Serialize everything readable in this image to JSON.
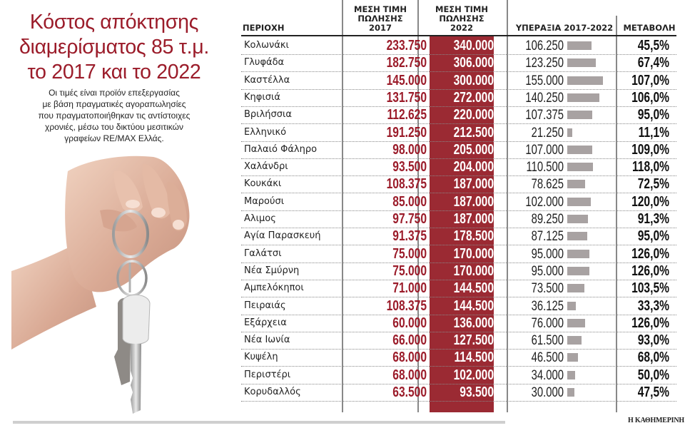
{
  "header": {
    "title_lines": [
      "Κόστος απόκτησης",
      "διαμερίσματος 85 τ.μ.",
      "το 2017 και το 2022"
    ],
    "subtitle_lines": [
      "Οι τιμές είναι προϊόν επεξεργασίας",
      "με βάση πραγματικές αγοραπωλησίες",
      "που πραγματοποιήθηκαν τις αντίστοιχες",
      "χρονιές, μέσω του δικτύου μεσιτικών",
      "γραφείων RE/MAX Ελλάς."
    ]
  },
  "table": {
    "columns": {
      "area": "ΠΕΡΙΟΧΗ",
      "price_2017": [
        "ΜΕΣΗ ΤΙΜΗ",
        "ΠΩΛΗΣΗΣ",
        "2017"
      ],
      "price_2022": [
        "ΜΕΣΗ ΤΙΜΗ",
        "ΠΩΛΗΣΗΣ",
        "2022"
      ],
      "gain": "ΥΠΕΡΑΞΙΑ 2017-2022",
      "change": "ΜΕΤΑΒΟΛΗ"
    },
    "rows": [
      {
        "area": "Κολωνάκι",
        "p2017": "233.750",
        "p2022": "340.000",
        "gain": "106.250",
        "change": "45,5%"
      },
      {
        "area": "Γλυφάδα",
        "p2017": "182.750",
        "p2022": "306.000",
        "gain": "123.250",
        "change": "67,4%"
      },
      {
        "area": "Καστέλλα",
        "p2017": "145.000",
        "p2022": "300.000",
        "gain": "155.000",
        "change": "107,0%"
      },
      {
        "area": "Κηφισιά",
        "p2017": "131.750",
        "p2022": "272.000",
        "gain": "140.250",
        "change": "106,0%"
      },
      {
        "area": "Βριλήσσια",
        "p2017": "112.625",
        "p2022": "220.000",
        "gain": "107.375",
        "change": "95,0%"
      },
      {
        "area": "Ελληνικό",
        "p2017": "191.250",
        "p2022": "212.500",
        "gain": "21.250",
        "change": "11,1%"
      },
      {
        "area": "Παλαιό Φάληρο",
        "p2017": "98.000",
        "p2022": "205.000",
        "gain": "107.000",
        "change": "109,0%"
      },
      {
        "area": "Χαλάνδρι",
        "p2017": "93.500",
        "p2022": "204.000",
        "gain": "110.500",
        "change": "118,0%"
      },
      {
        "area": "Κουκάκι",
        "p2017": "108.375",
        "p2022": "187.000",
        "gain": "78.625",
        "change": "72,5%"
      },
      {
        "area": "Μαρούσι",
        "p2017": "85.000",
        "p2022": "187.000",
        "gain": "102.000",
        "change": "120,0%"
      },
      {
        "area": "Αλιμος",
        "p2017": "97.750",
        "p2022": "187.000",
        "gain": "89.250",
        "change": "91,3%"
      },
      {
        "area": "Αγία Παρασκευή",
        "p2017": "91.375",
        "p2022": "178.500",
        "gain": "87.125",
        "change": "95,0%"
      },
      {
        "area": "Γαλάτσι",
        "p2017": "75.000",
        "p2022": "170.000",
        "gain": "95.000",
        "change": "126,0%"
      },
      {
        "area": "Νέα Σμύρνη",
        "p2017": "75.000",
        "p2022": "170.000",
        "gain": "95.000",
        "change": "126,0%"
      },
      {
        "area": "Αμπελόκηποι",
        "p2017": "71.000",
        "p2022": "144.500",
        "gain": "73.500",
        "change": "103,5%"
      },
      {
        "area": "Πειραιάς",
        "p2017": "108.375",
        "p2022": "144.500",
        "gain": "36.125",
        "change": "33,3%"
      },
      {
        "area": "Εξάρχεια",
        "p2017": "60.000",
        "p2022": "136.000",
        "gain": "76.000",
        "change": "126,0%"
      },
      {
        "area": "Νέα Ιωνία",
        "p2017": "66.000",
        "p2022": "127.500",
        "gain": "61.500",
        "change": "93,0%"
      },
      {
        "area": "Κυψέλη",
        "p2017": "68.000",
        "p2022": "114.500",
        "gain": "46.500",
        "change": "68,0%"
      },
      {
        "area": "Περιστέρι",
        "p2017": "68.000",
        "p2022": "102.000",
        "gain": "34.000",
        "change": "50,0%"
      },
      {
        "area": "Κορυδαλλός",
        "p2017": "63.500",
        "p2022": "93.500",
        "gain": "30.000",
        "change": "47,5%"
      }
    ]
  },
  "colors": {
    "accent_red": "#9b1c2a",
    "column_2022_bg": "#9b2a33",
    "bar_gray": "#a8a2a2"
  },
  "footer": {
    "brand": "Η ΚΑΘΗΜΕΡΙΝΗ"
  },
  "chart_data": {
    "type": "table",
    "title": "Κόστος απόκτησης διαμερίσματος 85 τ.μ. το 2017 και το 2022",
    "subtitle": "Οι τιμές είναι προϊόν επεξεργασίας με βάση πραγματικές αγοραπωλησίες που πραγματοποιήθηκαν τις αντίστοιχες χρονιές, μέσω του δικτύου μεσιτικών γραφείων RE/MAX Ελλάς.",
    "columns": [
      "ΠΕΡΙΟΧΗ",
      "ΜΕΣΗ ΤΙΜΗ ΠΩΛΗΣΗΣ 2017",
      "ΜΕΣΗ ΤΙΜΗ ΠΩΛΗΣΗΣ 2022",
      "ΥΠΕΡΑΞΙΑ 2017-2022",
      "ΜΕΤΑΒΟΛΗ"
    ],
    "categories": [
      "Κολωνάκι",
      "Γλυφάδα",
      "Καστέλλα",
      "Κηφισιά",
      "Βριλήσσια",
      "Ελληνικό",
      "Παλαιό Φάληρο",
      "Χαλάνδρι",
      "Κουκάκι",
      "Μαρούσι",
      "Αλιμος",
      "Αγία Παρασκευή",
      "Γαλάτσι",
      "Νέα Σμύρνη",
      "Αμπελόκηποι",
      "Πειραιάς",
      "Εξάρχεια",
      "Νέα Ιωνία",
      "Κυψέλη",
      "Περιστέρι",
      "Κορυδαλλός"
    ],
    "series": [
      {
        "name": "ΜΕΣΗ ΤΙΜΗ ΠΩΛΗΣΗΣ 2017",
        "values": [
          233750,
          182750,
          145000,
          131750,
          112625,
          191250,
          98000,
          93500,
          108375,
          85000,
          97750,
          91375,
          75000,
          75000,
          71000,
          108375,
          60000,
          66000,
          68000,
          68000,
          63500
        ]
      },
      {
        "name": "ΜΕΣΗ ΤΙΜΗ ΠΩΛΗΣΗΣ 2022",
        "values": [
          340000,
          306000,
          300000,
          272000,
          220000,
          212500,
          205000,
          204000,
          187000,
          187000,
          187000,
          178500,
          170000,
          170000,
          144500,
          144500,
          136000,
          127500,
          114500,
          102000,
          93500
        ]
      },
      {
        "name": "ΥΠΕΡΑΞΙΑ 2017-2022",
        "values": [
          106250,
          123250,
          155000,
          140250,
          107375,
          21250,
          107000,
          110500,
          78625,
          102000,
          89250,
          87125,
          95000,
          95000,
          73500,
          36125,
          76000,
          61500,
          46500,
          34000,
          30000
        ]
      },
      {
        "name": "ΜΕΤΑΒΟΛΗ (%)",
        "values": [
          45.5,
          67.4,
          107.0,
          106.0,
          95.0,
          11.1,
          109.0,
          118.0,
          72.5,
          120.0,
          91.3,
          95.0,
          126.0,
          126.0,
          103.5,
          33.3,
          126.0,
          93.0,
          68.0,
          50.0,
          47.5
        ]
      }
    ],
    "bar_series": "ΥΠΕΡΑΞΙΑ 2017-2022",
    "source": "Η ΚΑΘΗΜΕΡΙΝΗ"
  }
}
